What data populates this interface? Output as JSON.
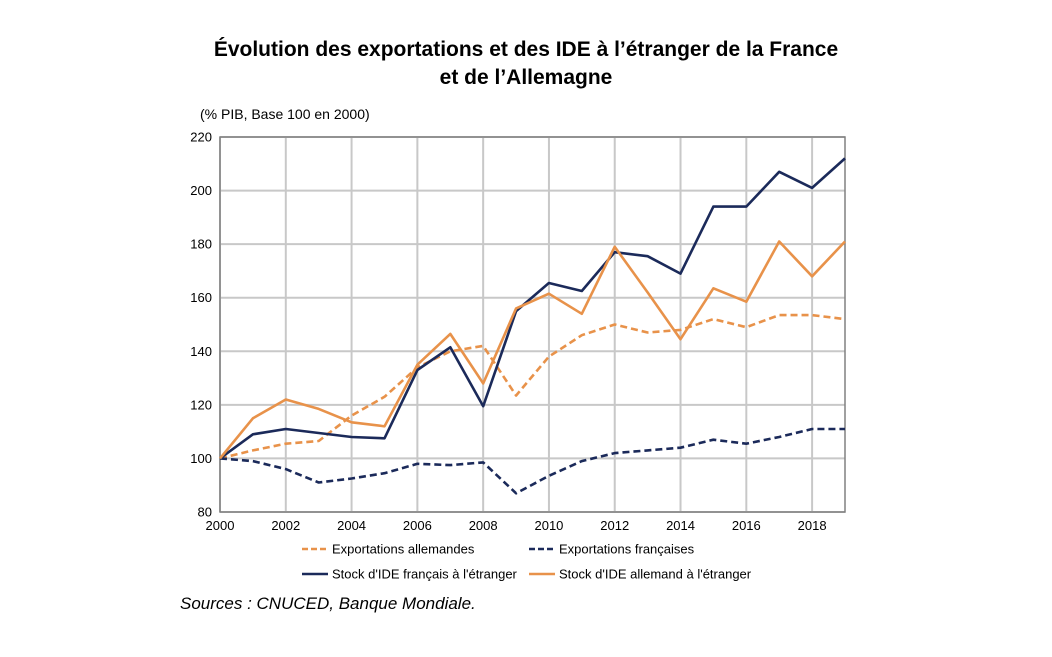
{
  "chart_data": {
    "type": "line",
    "title_line1": "Évolution des exportations et des IDE à l’étranger de la France",
    "title_line2": "et de l’Allemagne",
    "unit_label": "(% PIB, Base 100 en 2000)",
    "source": "Sources : CNUCED, Banque Mondiale.",
    "xlim": [
      2000,
      2019
    ],
    "ylim": [
      80,
      220
    ],
    "x_ticks": [
      "2000",
      "2002",
      "2004",
      "2006",
      "2008",
      "2010",
      "2012",
      "2014",
      "2016",
      "2018"
    ],
    "y_ticks": [
      "80",
      "100",
      "120",
      "140",
      "160",
      "180",
      "200",
      "220"
    ],
    "grid": true,
    "legend_position": "bottom",
    "x": [
      2000,
      2001,
      2002,
      2003,
      2004,
      2005,
      2006,
      2007,
      2008,
      2009,
      2010,
      2011,
      2012,
      2013,
      2014,
      2015,
      2016,
      2017,
      2018,
      2019
    ],
    "series": [
      {
        "name": "Exportations allemandes",
        "color": "#E8924A",
        "dash": true,
        "values": [
          100,
          103,
          105.5,
          106.5,
          116,
          123,
          134,
          140,
          142,
          123.5,
          138,
          146,
          150,
          147,
          148,
          152,
          149,
          153.5,
          153.5,
          152
        ]
      },
      {
        "name": "Exportations françaises",
        "color": "#1B2A5A",
        "dash": true,
        "values": [
          100,
          99,
          96,
          91,
          92.5,
          94.5,
          98,
          97.5,
          98.5,
          87,
          93.5,
          99,
          102,
          103,
          104,
          107,
          105.5,
          108,
          111,
          111
        ]
      },
      {
        "name": "Stock d'IDE français à l'étranger",
        "color": "#1B2A5A",
        "dash": false,
        "values": [
          100,
          109,
          111,
          109.5,
          108,
          107.5,
          133,
          141.5,
          119.5,
          155,
          165.5,
          162.5,
          177,
          175.5,
          169,
          194,
          194,
          207,
          201,
          212
        ]
      },
      {
        "name": "Stock d'IDE allemand à l'étranger",
        "color": "#E8924A",
        "dash": false,
        "values": [
          100,
          115,
          122,
          118.5,
          113.5,
          112,
          135,
          146.5,
          128,
          156,
          161.5,
          154,
          179,
          162,
          144.5,
          163.5,
          158.5,
          181,
          168,
          181
        ]
      }
    ]
  }
}
